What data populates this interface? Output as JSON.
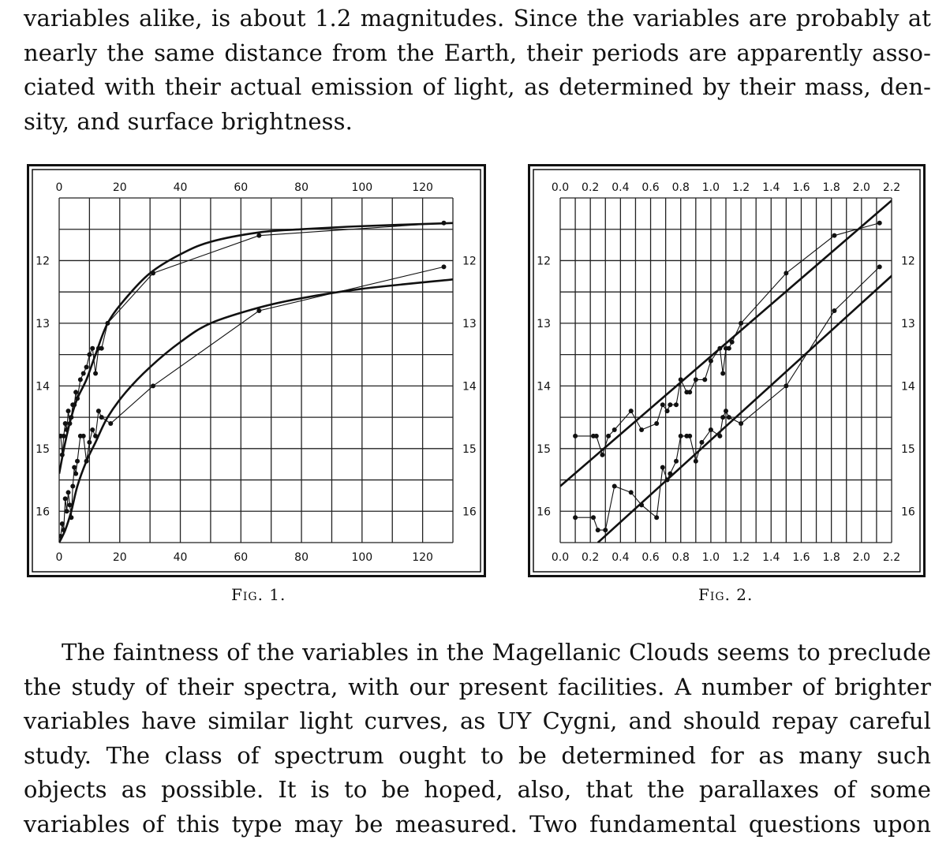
{
  "page": {
    "para_top": [
      "variables alike, is about 1.2 magnitudes.  Since the variables are probably at",
      "nearly the same distance from the Earth, their periods are apparently asso-",
      "ciated with their actual emission of light, as determined by their mass, den-",
      "sity, and surface brightness."
    ],
    "para_bottom": [
      "The faintness of the variables in the Magellanic Clouds seems to preclude",
      "the study of their spectra, with our present facilities.  A number of brighter",
      "variables have similar light curves, as UY Cygni, and should repay careful",
      "study.  The class of spectrum ought to be determined for as many such",
      "objects as possible.  It is to be hoped, also, that the parallaxes of some",
      "variables of this type may be measured.  Two fundamental questions upon"
    ]
  },
  "chart_data": [
    {
      "id": "fig1",
      "type": "scatter",
      "caption": "Fig. 1.",
      "x_ticks": [
        "0",
        "20",
        "40",
        "60",
        "80",
        "100",
        "120"
      ],
      "y_ticks": [
        "12",
        "13",
        "14",
        "15",
        "16"
      ],
      "xlim": [
        0,
        130
      ],
      "ylim": [
        11,
        16.5
      ],
      "y_inverted": true,
      "grid": true,
      "series": [
        {
          "style": "points-joined",
          "x": [
            0.5,
            1,
            1.5,
            2,
            2.5,
            3,
            3.5,
            4,
            4.5,
            5,
            5.5,
            6,
            7,
            8,
            9,
            10,
            11,
            12,
            13,
            14,
            16,
            31,
            66,
            127
          ],
          "y": [
            14.8,
            15.1,
            14.8,
            14.6,
            14.7,
            14.4,
            14.6,
            14.5,
            14.3,
            14.3,
            14.1,
            14.2,
            13.9,
            13.8,
            13.7,
            13.5,
            13.4,
            13.8,
            13.4,
            13.4,
            13.0,
            12.2,
            11.6,
            11.4
          ]
        },
        {
          "style": "points-joined",
          "x": [
            0.5,
            1,
            1.5,
            2,
            2.5,
            3,
            3.5,
            4,
            4.5,
            5,
            5.5,
            6,
            7,
            8,
            9,
            10,
            11,
            12,
            13,
            14,
            17,
            31,
            66,
            127
          ],
          "y": [
            16.4,
            16.2,
            16.3,
            15.8,
            16.0,
            15.7,
            15.9,
            16.1,
            15.6,
            15.3,
            15.4,
            15.2,
            14.8,
            14.8,
            15.2,
            14.9,
            14.7,
            14.8,
            14.4,
            14.5,
            14.6,
            14.0,
            12.8,
            12.1
          ]
        },
        {
          "style": "smooth-curve",
          "x": [
            0,
            2,
            4,
            6,
            9,
            12,
            16,
            22,
            30,
            40,
            50,
            66,
            80,
            100,
            130
          ],
          "y": [
            15.4,
            14.9,
            14.5,
            14.2,
            13.9,
            13.5,
            13.0,
            12.6,
            12.2,
            11.9,
            11.7,
            11.55,
            11.5,
            11.45,
            11.4
          ]
        },
        {
          "style": "smooth-curve",
          "x": [
            0,
            2,
            4,
            6,
            9,
            12,
            16,
            22,
            30,
            40,
            50,
            66,
            80,
            100,
            130
          ],
          "y": [
            16.5,
            16.3,
            16.0,
            15.6,
            15.2,
            14.9,
            14.5,
            14.1,
            13.7,
            13.3,
            13.0,
            12.75,
            12.6,
            12.45,
            12.3
          ]
        }
      ]
    },
    {
      "id": "fig2",
      "type": "scatter",
      "caption": "Fig. 2.",
      "x_ticks": [
        "0.0",
        "0.2",
        "0.4",
        "0.6",
        "0.8",
        "1.0",
        "1.2",
        "1.4",
        "1.6",
        "1.8",
        "2.0",
        "2.2"
      ],
      "x_ticks_bottom_first": "0.0",
      "y_ticks": [
        "12",
        "13",
        "14",
        "15",
        "16"
      ],
      "xlim": [
        0,
        2.2
      ],
      "ylim": [
        11,
        16.5
      ],
      "y_inverted": true,
      "grid": true,
      "series": [
        {
          "style": "points-joined",
          "x": [
            0.1,
            0.22,
            0.24,
            0.28,
            0.32,
            0.36,
            0.47,
            0.54,
            0.64,
            0.68,
            0.71,
            0.73,
            0.77,
            0.8,
            0.84,
            0.86,
            0.9,
            0.96,
            1.0,
            1.06,
            1.08,
            1.1,
            1.12,
            1.14,
            1.2,
            1.5,
            1.82,
            2.12
          ],
          "y": [
            14.8,
            14.8,
            14.8,
            15.1,
            14.8,
            14.7,
            14.4,
            14.7,
            14.6,
            14.3,
            14.4,
            14.3,
            14.3,
            13.9,
            14.1,
            14.1,
            13.9,
            13.9,
            13.6,
            13.4,
            13.8,
            13.4,
            13.4,
            13.3,
            13.0,
            12.2,
            11.6,
            11.4
          ]
        },
        {
          "style": "points-joined",
          "x": [
            0.1,
            0.22,
            0.25,
            0.3,
            0.36,
            0.47,
            0.54,
            0.64,
            0.68,
            0.71,
            0.73,
            0.77,
            0.8,
            0.84,
            0.86,
            0.9,
            0.94,
            1.0,
            1.06,
            1.08,
            1.1,
            1.12,
            1.2,
            1.5,
            1.82,
            2.12
          ],
          "y": [
            16.1,
            16.1,
            16.3,
            16.3,
            15.6,
            15.7,
            15.9,
            16.1,
            15.3,
            15.5,
            15.4,
            15.2,
            14.8,
            14.8,
            14.8,
            15.2,
            14.9,
            14.7,
            14.8,
            14.5,
            14.4,
            14.5,
            14.6,
            14.0,
            12.8,
            12.1
          ]
        },
        {
          "style": "straight-line",
          "x": [
            0,
            2.22
          ],
          "y": [
            15.6,
            11.0
          ]
        },
        {
          "style": "straight-line",
          "x": [
            0.25,
            2.22
          ],
          "y": [
            16.5,
            12.2
          ]
        }
      ]
    }
  ]
}
